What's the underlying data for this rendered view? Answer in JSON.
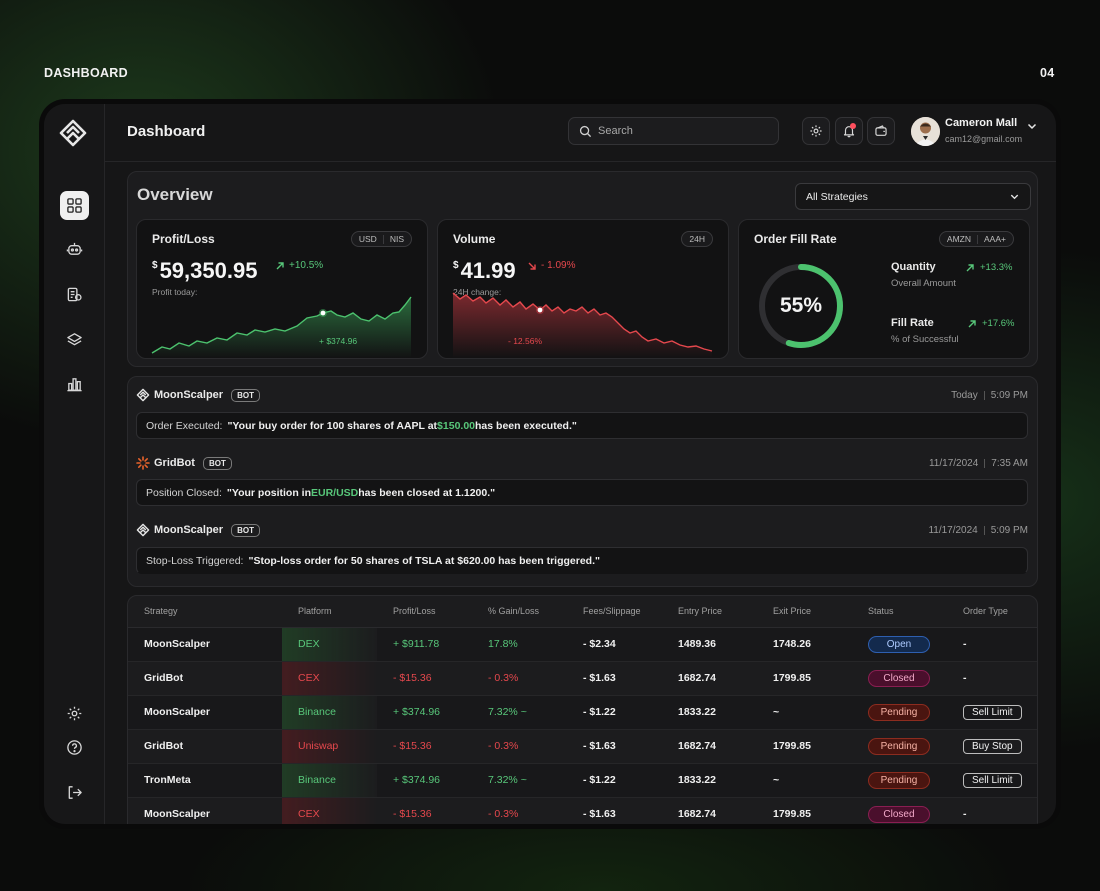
{
  "page": {
    "label": "DASHBOARD",
    "number": "04"
  },
  "topbar": {
    "title": "Dashboard",
    "search_placeholder": "Search",
    "user_name": "Cameron Mall",
    "user_email": "cam12@gmail.com"
  },
  "overview": {
    "title": "Overview",
    "strategy_select": "All Strategies",
    "profit": {
      "title": "Profit/Loss",
      "toggle": [
        "USD",
        "NIS"
      ],
      "currency": "$",
      "value": "59,350.95",
      "change": "+10.5%",
      "sublabel": "Profit today:",
      "tooltip": "+ $374.96"
    },
    "volume": {
      "title": "Volume",
      "toggle": [
        "24H"
      ],
      "currency": "$",
      "value": "41.99",
      "change": "- 1.09%",
      "sublabel": "24H change:",
      "tooltip": "- 12.56%"
    },
    "fill": {
      "title": "Order Fill Rate",
      "toggle": [
        "AMZN",
        "AAA+"
      ],
      "percent_label": "55%",
      "percent": 0.55,
      "quantity_title": "Quantity",
      "quantity_sub": "Overall Amount",
      "quantity_change": "+13.3%",
      "rate_title": "Fill Rate",
      "rate_sub": "% of Successful",
      "rate_change": "+17.6%"
    }
  },
  "feed": [
    {
      "bot": "MoonScalper",
      "badge": "BOT",
      "date": "Today",
      "time": "5:09 PM",
      "label": "Order Executed:",
      "pre": "\"Your buy order for 100 shares of AAPL at ",
      "hl": "$150.00",
      "post": " has been executed.\""
    },
    {
      "bot": "GridBot",
      "badge": "BOT",
      "date": "11/17/2024",
      "time": "7:35 AM",
      "label": "Position Closed:",
      "pre": "\"Your position in ",
      "hl": "EUR/USD",
      "post": " has been closed at 1.1200.\""
    },
    {
      "bot": "MoonScalper",
      "badge": "BOT",
      "date": "11/17/2024",
      "time": "5:09 PM",
      "label": "Stop-Loss Triggered:",
      "pre": "\"Stop-loss order for 50 shares of TSLA at $620.00 has been triggered.\"",
      "hl": "",
      "post": ""
    }
  ],
  "table": {
    "headers": [
      "Strategy",
      "Platform",
      "Profit/Loss",
      "% Gain/Loss",
      "Fees/Slippage",
      "Entry Price",
      "Exit Price",
      "Status",
      "Order Type"
    ],
    "rows": [
      {
        "strategy": "MoonScalper",
        "platform": "DEX",
        "pl": "+ $911.78",
        "gain": "17.8%",
        "fees": "- $2.34",
        "entry": "1489.36",
        "exit": "1748.26",
        "status": "Open",
        "otype": "-",
        "pos": true
      },
      {
        "strategy": "GridBot",
        "platform": "CEX",
        "pl": "- $15.36",
        "gain": "- 0.3%",
        "fees": "- $1.63",
        "entry": "1682.74",
        "exit": "1799.85",
        "status": "Closed",
        "otype": "-",
        "pos": false
      },
      {
        "strategy": "MoonScalper",
        "platform": "Binance",
        "pl": "+ $374.96",
        "gain": "7.32% ~",
        "fees": "- $1.22",
        "entry": "1833.22",
        "exit": "~",
        "status": "Pending",
        "otype": "Sell Limit",
        "pos": true
      },
      {
        "strategy": "GridBot",
        "platform": "Uniswap",
        "pl": "- $15.36",
        "gain": "- 0.3%",
        "fees": "- $1.63",
        "entry": "1682.74",
        "exit": "1799.85",
        "status": "Pending",
        "otype": "Buy Stop",
        "pos": false
      },
      {
        "strategy": "TronMeta",
        "platform": "Binance",
        "pl": "+ $374.96",
        "gain": "7.32% ~",
        "fees": "- $1.22",
        "entry": "1833.22",
        "exit": "~",
        "status": "Pending",
        "otype": "Sell Limit",
        "pos": true
      },
      {
        "strategy": "MoonScalper",
        "platform": "CEX",
        "pl": "- $15.36",
        "gain": "- 0.3%",
        "fees": "- $1.63",
        "entry": "1682.74",
        "exit": "1799.85",
        "status": "Closed",
        "otype": "-",
        "pos": false
      }
    ]
  },
  "sidebar": {
    "icons": [
      "dashboard-grid-icon",
      "bot-icon",
      "orders-icon",
      "layers-icon",
      "analytics-icon",
      "settings-icon",
      "help-icon",
      "logout-icon"
    ]
  }
}
